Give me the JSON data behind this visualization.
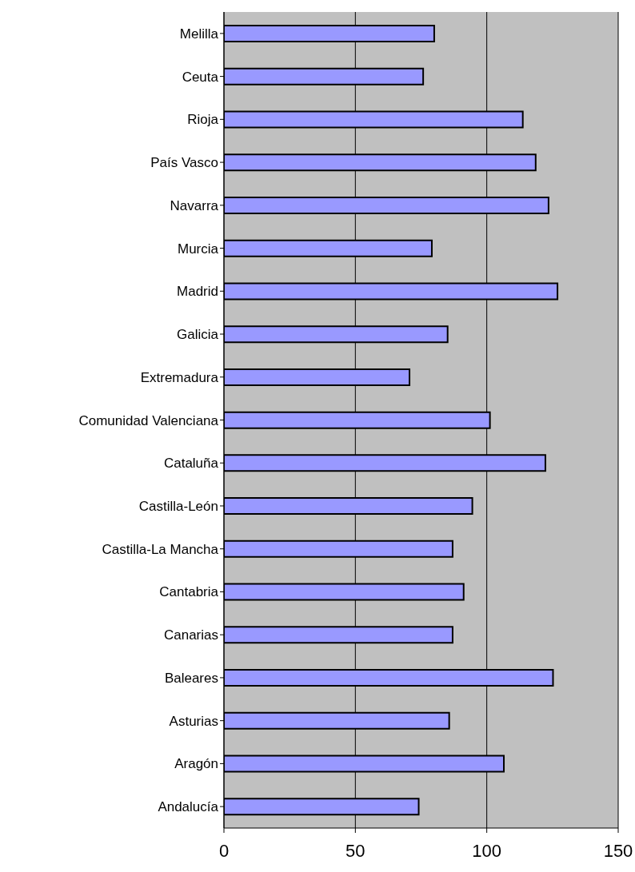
{
  "chart_data": {
    "type": "bar",
    "orientation": "horizontal",
    "categories": [
      "Melilla",
      "Ceuta",
      "Rioja",
      "País Vasco",
      "Navarra",
      "Murcia",
      "Madrid",
      "Galicia",
      "Extremadura",
      "Comunidad Valenciana",
      "Cataluña",
      "Castilla-León",
      "Castilla-La Mancha",
      "Cantabria",
      "Canarias",
      "Baleares",
      "Asturias",
      "Aragón",
      "Andalucía"
    ],
    "values": [
      80,
      75.8,
      113.7,
      118.6,
      123.5,
      79.1,
      126.9,
      85.1,
      70.6,
      101.2,
      122.3,
      94.5,
      87,
      91.2,
      87,
      125.2,
      85.7,
      106.5,
      74.1
    ],
    "color": "#9999ff",
    "xlim": [
      0,
      150
    ],
    "xticks": [
      0,
      50,
      100,
      150
    ],
    "grid": "x"
  }
}
